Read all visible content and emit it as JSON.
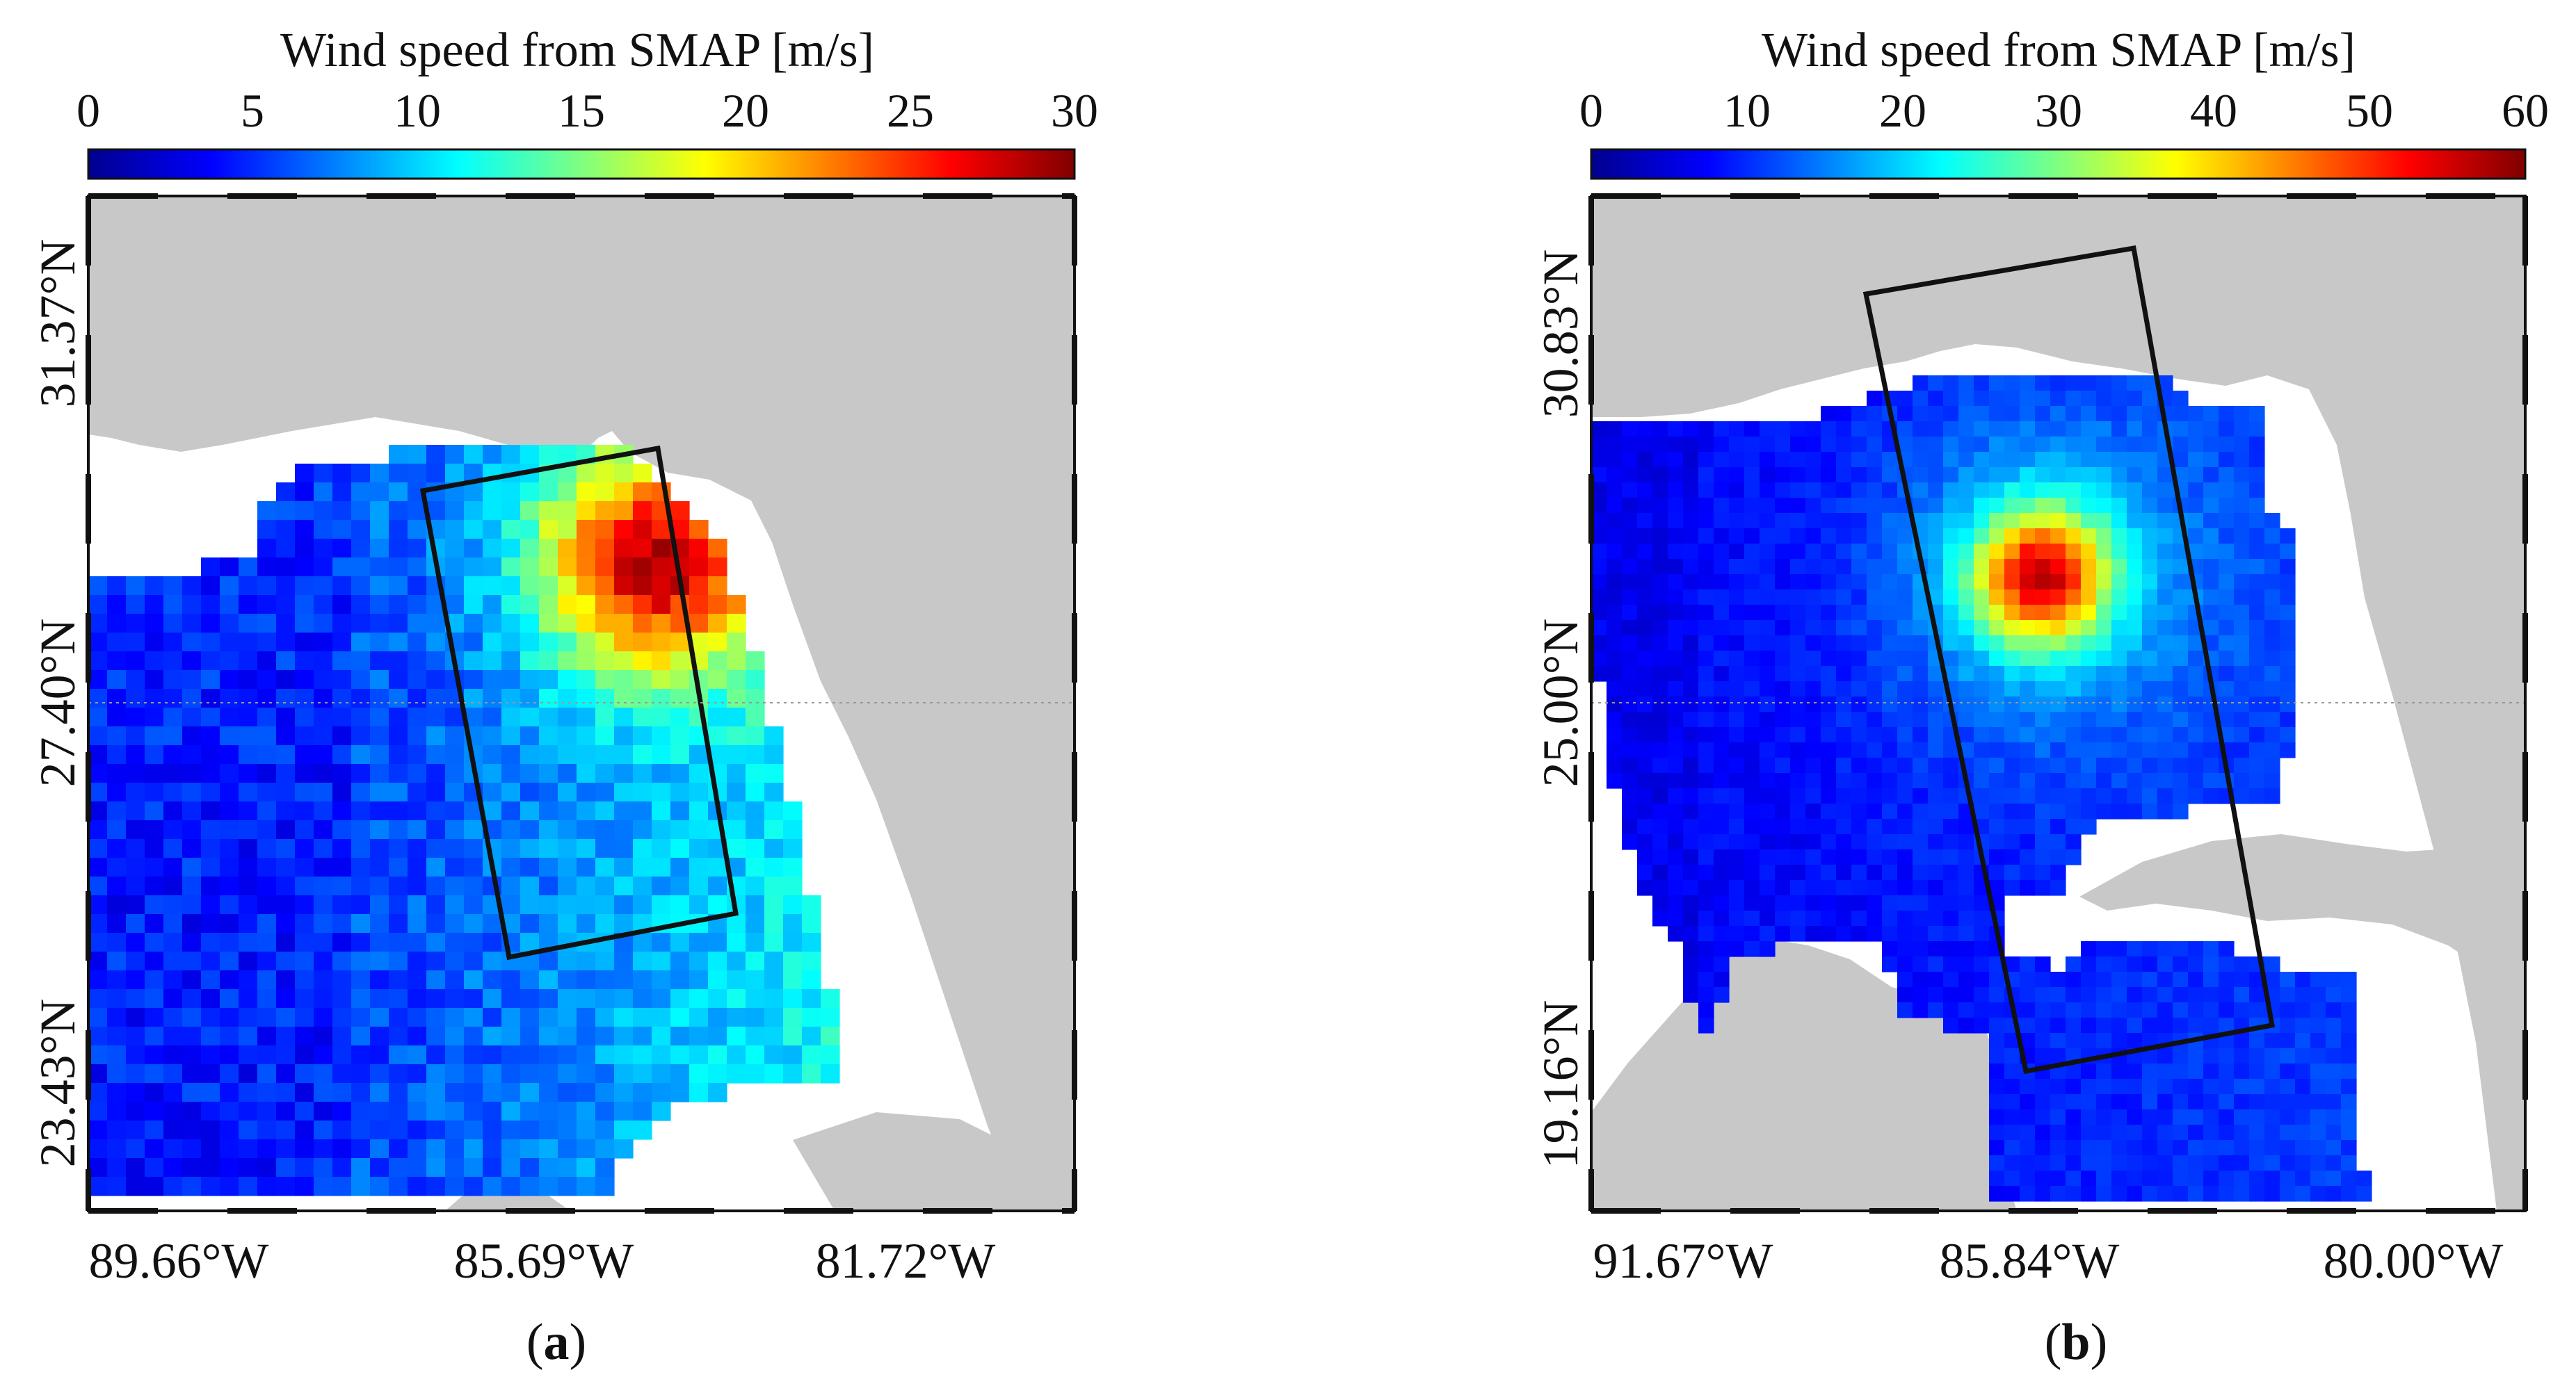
{
  "panels": [
    {
      "id": "a",
      "colorbar": {
        "title": "Wind speed from SMAP [m/s]",
        "ticks": [
          "0",
          "5",
          "10",
          "15",
          "20",
          "25",
          "30"
        ],
        "range": [
          0,
          30
        ],
        "colormap": "jet"
      },
      "lon_labels": [
        "89.66°W",
        "85.69°W",
        "81.72°W"
      ],
      "lat_labels": [
        "31.37°N",
        "27.40°N",
        "23.43°N"
      ],
      "caption": {
        "open": "(",
        "letter": "a",
        "close": ")"
      }
    },
    {
      "id": "b",
      "colorbar": {
        "title": "Wind speed from SMAP [m/s]",
        "ticks": [
          "0",
          "10",
          "20",
          "30",
          "40",
          "50",
          "60"
        ],
        "range": [
          0,
          60
        ],
        "colormap": "jet"
      },
      "lon_labels": [
        "91.67°W",
        "85.84°W",
        "80.00°W"
      ],
      "lat_labels": [
        "30.83°N",
        "25.00°N",
        "19.16°N"
      ],
      "caption": {
        "open": "(",
        "letter": "b",
        "close": ")"
      }
    }
  ],
  "colors": {
    "land": "#c8c8c8",
    "ocean": "#ffffff",
    "frame": "#111111",
    "swath": "#111111"
  }
}
